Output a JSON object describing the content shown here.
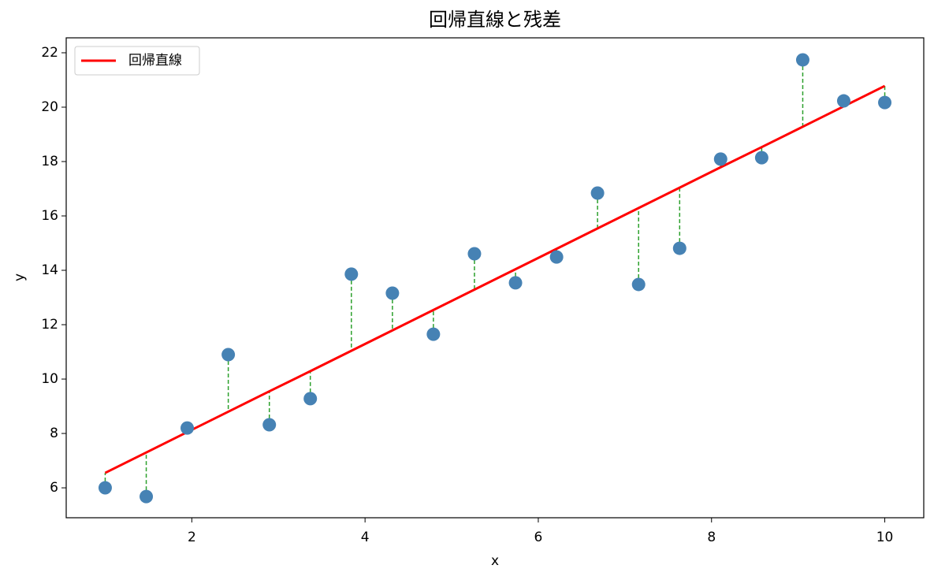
{
  "chart_data": {
    "type": "scatter",
    "title": "回帰直線と残差",
    "x_label": "x",
    "y_label": "y",
    "x": [
      1,
      1.474,
      1.947,
      2.421,
      2.895,
      3.368,
      3.842,
      4.316,
      4.789,
      5.263,
      5.737,
      6.211,
      6.684,
      7.158,
      7.632,
      8.105,
      8.579,
      9.053,
      9.526,
      10
    ],
    "series": [
      {
        "color": "#4682b4",
        "values": [
          6.0,
          5.68,
          8.2,
          10.9,
          8.32,
          9.28,
          13.86,
          13.16,
          11.65,
          14.61,
          13.54,
          14.49,
          16.84,
          13.48,
          14.81,
          18.09,
          18.14,
          21.74,
          20.23,
          20.17
        ]
      }
    ],
    "line": {
      "name": "回帰直線",
      "color": "#ff0000",
      "values": [
        6.55,
        7.3,
        8.05,
        8.8,
        9.55,
        10.29,
        11.04,
        11.79,
        12.54,
        13.29,
        14.04,
        14.79,
        15.54,
        16.29,
        17.04,
        17.79,
        18.53,
        19.28,
        20.03,
        20.78
      ]
    },
    "residual_color": "#2ca02c",
    "xlim": [
      0.55,
      10.45
    ],
    "ylim": [
      4.9,
      22.55
    ],
    "xticks": [
      2,
      4,
      6,
      8,
      10
    ],
    "yticks": [
      6,
      8,
      10,
      12,
      14,
      16,
      18,
      20,
      22
    ],
    "grid": false,
    "legend": "upper left"
  }
}
